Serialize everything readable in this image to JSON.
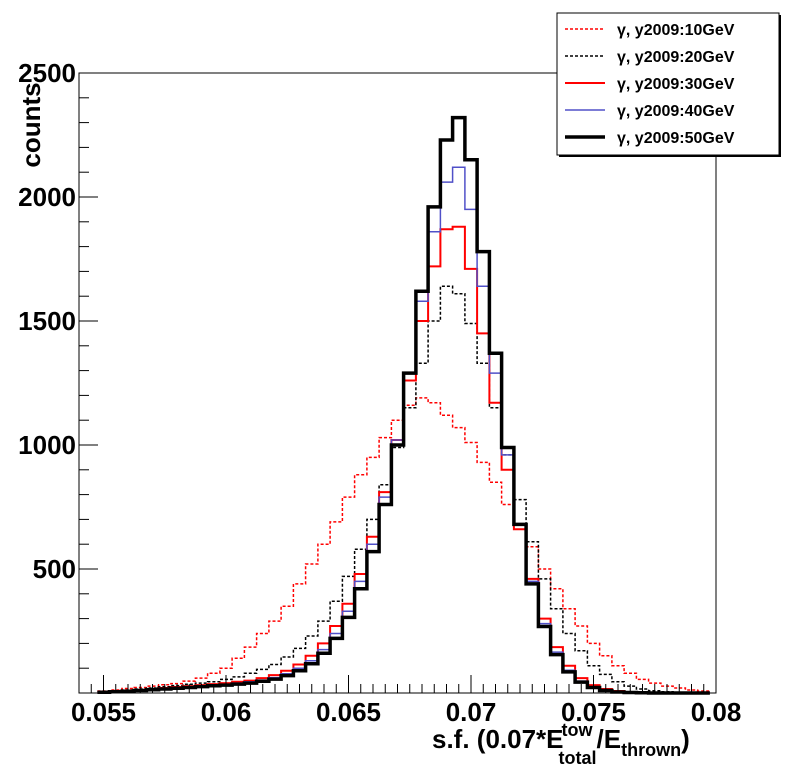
{
  "chart_data": {
    "type": "line",
    "xlabel": "s.f. (0.07*E",
    "xlabel_sup": "tow",
    "xlabel_sub": "total",
    "xlabel_mid": "/E",
    "xlabel_sub2": "thrown",
    "xlabel_end": ")",
    "ylabel": "counts",
    "xlim": [
      0.054,
      0.08
    ],
    "ylim": [
      0,
      2500
    ],
    "x_ticks": [
      0.055,
      0.06,
      0.065,
      0.07,
      0.075,
      0.08
    ],
    "x_tick_labels": [
      "0.055",
      "0.06",
      "0.065",
      "0.07",
      "0.075",
      "0.08"
    ],
    "y_ticks": [
      500,
      1000,
      1500,
      2000,
      2500
    ],
    "y_tick_labels": [
      "500",
      "1000",
      "1500",
      "2000",
      "2500"
    ],
    "legend_position": "top-right",
    "series": [
      {
        "name": "γ, y2009:10GeV",
        "color": "#ff0000",
        "style": "dotted",
        "width": 1.5,
        "points": [
          [
            0.055,
            8
          ],
          [
            0.0555,
            12
          ],
          [
            0.056,
            18
          ],
          [
            0.0565,
            22
          ],
          [
            0.057,
            28
          ],
          [
            0.0575,
            33
          ],
          [
            0.058,
            38
          ],
          [
            0.0585,
            48
          ],
          [
            0.059,
            60
          ],
          [
            0.0595,
            80
          ],
          [
            0.06,
            100
          ],
          [
            0.0605,
            140
          ],
          [
            0.061,
            185
          ],
          [
            0.0615,
            240
          ],
          [
            0.062,
            290
          ],
          [
            0.0625,
            350
          ],
          [
            0.063,
            440
          ],
          [
            0.0635,
            520
          ],
          [
            0.064,
            600
          ],
          [
            0.0645,
            690
          ],
          [
            0.065,
            790
          ],
          [
            0.0655,
            880
          ],
          [
            0.066,
            950
          ],
          [
            0.0665,
            1030
          ],
          [
            0.067,
            1100
          ],
          [
            0.0675,
            1160
          ],
          [
            0.068,
            1190
          ],
          [
            0.0685,
            1170
          ],
          [
            0.069,
            1120
          ],
          [
            0.0695,
            1070
          ],
          [
            0.07,
            1010
          ],
          [
            0.0705,
            930
          ],
          [
            0.071,
            850
          ],
          [
            0.0715,
            760
          ],
          [
            0.072,
            680
          ],
          [
            0.0725,
            590
          ],
          [
            0.073,
            500
          ],
          [
            0.0735,
            420
          ],
          [
            0.074,
            340
          ],
          [
            0.0745,
            270
          ],
          [
            0.075,
            200
          ],
          [
            0.0755,
            150
          ],
          [
            0.076,
            110
          ],
          [
            0.0765,
            80
          ],
          [
            0.077,
            55
          ],
          [
            0.0775,
            40
          ],
          [
            0.078,
            28
          ],
          [
            0.0785,
            20
          ],
          [
            0.079,
            12
          ],
          [
            0.0795,
            8
          ]
        ]
      },
      {
        "name": "γ, y2009:20GeV",
        "color": "#000000",
        "style": "dotted",
        "width": 1.5,
        "points": [
          [
            0.055,
            5
          ],
          [
            0.0555,
            8
          ],
          [
            0.056,
            12
          ],
          [
            0.0565,
            16
          ],
          [
            0.057,
            20
          ],
          [
            0.0575,
            25
          ],
          [
            0.058,
            30
          ],
          [
            0.0585,
            35
          ],
          [
            0.059,
            40
          ],
          [
            0.0595,
            45
          ],
          [
            0.06,
            55
          ],
          [
            0.0605,
            65
          ],
          [
            0.061,
            80
          ],
          [
            0.0615,
            95
          ],
          [
            0.062,
            115
          ],
          [
            0.0625,
            145
          ],
          [
            0.063,
            180
          ],
          [
            0.0635,
            230
          ],
          [
            0.064,
            290
          ],
          [
            0.0645,
            370
          ],
          [
            0.065,
            470
          ],
          [
            0.0655,
            580
          ],
          [
            0.066,
            700
          ],
          [
            0.0665,
            840
          ],
          [
            0.067,
            990
          ],
          [
            0.0675,
            1150
          ],
          [
            0.068,
            1330
          ],
          [
            0.0685,
            1500
          ],
          [
            0.069,
            1640
          ],
          [
            0.0695,
            1610
          ],
          [
            0.07,
            1490
          ],
          [
            0.0705,
            1330
          ],
          [
            0.071,
            1150
          ],
          [
            0.0715,
            960
          ],
          [
            0.072,
            780
          ],
          [
            0.0725,
            610
          ],
          [
            0.073,
            460
          ],
          [
            0.0735,
            340
          ],
          [
            0.074,
            240
          ],
          [
            0.0745,
            170
          ],
          [
            0.075,
            110
          ],
          [
            0.0755,
            75
          ],
          [
            0.076,
            45
          ],
          [
            0.0765,
            28
          ],
          [
            0.077,
            16
          ],
          [
            0.0775,
            9
          ],
          [
            0.078,
            5
          ],
          [
            0.0785,
            3
          ],
          [
            0.079,
            1
          ],
          [
            0.0795,
            1
          ]
        ]
      },
      {
        "name": "γ, y2009:30GeV",
        "color": "#ff0000",
        "style": "solid",
        "width": 2,
        "points": [
          [
            0.055,
            4
          ],
          [
            0.0555,
            6
          ],
          [
            0.056,
            9
          ],
          [
            0.0565,
            12
          ],
          [
            0.057,
            16
          ],
          [
            0.0575,
            20
          ],
          [
            0.058,
            24
          ],
          [
            0.0585,
            28
          ],
          [
            0.059,
            32
          ],
          [
            0.0595,
            36
          ],
          [
            0.06,
            40
          ],
          [
            0.0605,
            45
          ],
          [
            0.061,
            50
          ],
          [
            0.0615,
            60
          ],
          [
            0.062,
            72
          ],
          [
            0.0625,
            90
          ],
          [
            0.063,
            115
          ],
          [
            0.0635,
            150
          ],
          [
            0.064,
            200
          ],
          [
            0.0645,
            270
          ],
          [
            0.065,
            360
          ],
          [
            0.0655,
            480
          ],
          [
            0.066,
            630
          ],
          [
            0.0665,
            810
          ],
          [
            0.067,
            1020
          ],
          [
            0.0675,
            1260
          ],
          [
            0.068,
            1500
          ],
          [
            0.0685,
            1720
          ],
          [
            0.069,
            1870
          ],
          [
            0.0695,
            1880
          ],
          [
            0.07,
            1710
          ],
          [
            0.0705,
            1450
          ],
          [
            0.071,
            1170
          ],
          [
            0.0715,
            900
          ],
          [
            0.072,
            660
          ],
          [
            0.0725,
            460
          ],
          [
            0.073,
            300
          ],
          [
            0.0735,
            185
          ],
          [
            0.074,
            110
          ],
          [
            0.0745,
            60
          ],
          [
            0.075,
            32
          ],
          [
            0.0755,
            16
          ],
          [
            0.076,
            8
          ],
          [
            0.0765,
            4
          ],
          [
            0.077,
            2
          ],
          [
            0.0775,
            1
          ],
          [
            0.078,
            0
          ],
          [
            0.0785,
            0
          ],
          [
            0.079,
            0
          ],
          [
            0.0795,
            0
          ]
        ]
      },
      {
        "name": "γ, y2009:40GeV",
        "color": "#5050c8",
        "style": "solid",
        "width": 1.5,
        "points": [
          [
            0.055,
            3
          ],
          [
            0.0555,
            5
          ],
          [
            0.056,
            8
          ],
          [
            0.0565,
            11
          ],
          [
            0.057,
            14
          ],
          [
            0.0575,
            18
          ],
          [
            0.058,
            21
          ],
          [
            0.0585,
            25
          ],
          [
            0.059,
            28
          ],
          [
            0.0595,
            32
          ],
          [
            0.06,
            35
          ],
          [
            0.0605,
            40
          ],
          [
            0.061,
            45
          ],
          [
            0.0615,
            52
          ],
          [
            0.062,
            62
          ],
          [
            0.0625,
            78
          ],
          [
            0.063,
            100
          ],
          [
            0.0635,
            130
          ],
          [
            0.064,
            175
          ],
          [
            0.0645,
            240
          ],
          [
            0.065,
            330
          ],
          [
            0.0655,
            450
          ],
          [
            0.066,
            600
          ],
          [
            0.0665,
            790
          ],
          [
            0.067,
            1020
          ],
          [
            0.0675,
            1290
          ],
          [
            0.068,
            1580
          ],
          [
            0.0685,
            1860
          ],
          [
            0.069,
            2060
          ],
          [
            0.0695,
            2120
          ],
          [
            0.07,
            1950
          ],
          [
            0.0705,
            1640
          ],
          [
            0.071,
            1290
          ],
          [
            0.0715,
            960
          ],
          [
            0.072,
            680
          ],
          [
            0.0725,
            450
          ],
          [
            0.073,
            280
          ],
          [
            0.0735,
            165
          ],
          [
            0.074,
            92
          ],
          [
            0.0745,
            48
          ],
          [
            0.075,
            24
          ],
          [
            0.0755,
            11
          ],
          [
            0.076,
            5
          ],
          [
            0.0765,
            2
          ],
          [
            0.077,
            1
          ],
          [
            0.0775,
            0
          ],
          [
            0.078,
            0
          ],
          [
            0.0785,
            0
          ],
          [
            0.079,
            0
          ],
          [
            0.0795,
            0
          ]
        ]
      },
      {
        "name": "γ, y2009:50GeV",
        "color": "#000000",
        "style": "solid",
        "width": 3.5,
        "points": [
          [
            0.055,
            3
          ],
          [
            0.0555,
            5
          ],
          [
            0.056,
            7
          ],
          [
            0.0565,
            10
          ],
          [
            0.057,
            13
          ],
          [
            0.0575,
            16
          ],
          [
            0.058,
            19
          ],
          [
            0.0585,
            22
          ],
          [
            0.059,
            26
          ],
          [
            0.0595,
            29
          ],
          [
            0.06,
            32
          ],
          [
            0.0605,
            36
          ],
          [
            0.061,
            40
          ],
          [
            0.0615,
            47
          ],
          [
            0.062,
            56
          ],
          [
            0.0625,
            70
          ],
          [
            0.063,
            90
          ],
          [
            0.0635,
            118
          ],
          [
            0.064,
            160
          ],
          [
            0.0645,
            220
          ],
          [
            0.065,
            305
          ],
          [
            0.0655,
            420
          ],
          [
            0.066,
            570
          ],
          [
            0.0665,
            760
          ],
          [
            0.067,
            1000
          ],
          [
            0.0675,
            1290
          ],
          [
            0.068,
            1620
          ],
          [
            0.0685,
            1960
          ],
          [
            0.069,
            2230
          ],
          [
            0.0695,
            2320
          ],
          [
            0.07,
            2150
          ],
          [
            0.0705,
            1780
          ],
          [
            0.071,
            1370
          ],
          [
            0.0715,
            990
          ],
          [
            0.072,
            680
          ],
          [
            0.0725,
            440
          ],
          [
            0.073,
            268
          ],
          [
            0.0735,
            155
          ],
          [
            0.074,
            85
          ],
          [
            0.0745,
            44
          ],
          [
            0.075,
            22
          ],
          [
            0.0755,
            10
          ],
          [
            0.076,
            4
          ],
          [
            0.0765,
            2
          ],
          [
            0.077,
            1
          ],
          [
            0.0775,
            0
          ],
          [
            0.078,
            0
          ],
          [
            0.0785,
            0
          ],
          [
            0.079,
            0
          ],
          [
            0.0795,
            0
          ]
        ]
      }
    ]
  }
}
